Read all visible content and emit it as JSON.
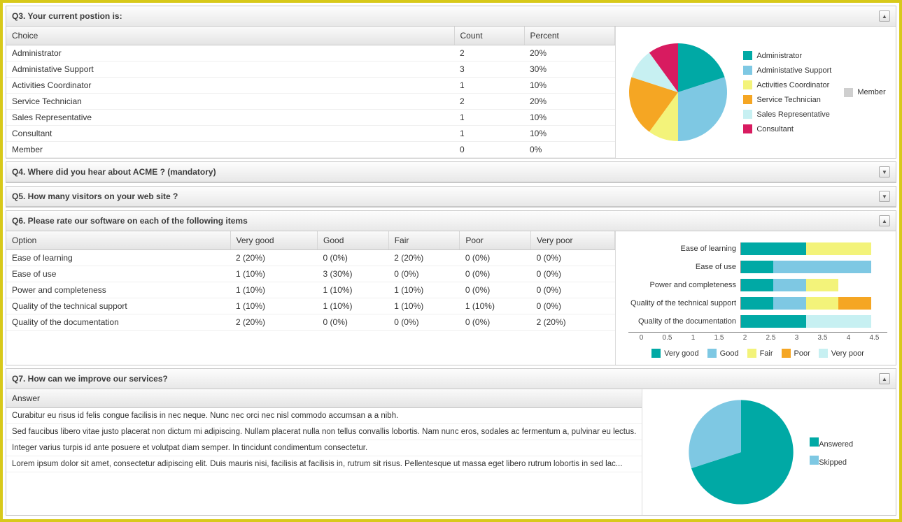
{
  "q3": {
    "title": "Q3. Your current postion is:",
    "expanded": true,
    "columns": [
      "Choice",
      "Count",
      "Percent"
    ],
    "rows": [
      {
        "label": "Administrator",
        "count": 2,
        "percent": "20%"
      },
      {
        "label": "Administative Support",
        "count": 3,
        "percent": "30%"
      },
      {
        "label": "Activities Coordinator",
        "count": 1,
        "percent": "10%"
      },
      {
        "label": "Service Technician",
        "count": 2,
        "percent": "20%"
      },
      {
        "label": "Sales Representative",
        "count": 1,
        "percent": "10%"
      },
      {
        "label": "Consultant",
        "count": 1,
        "percent": "10%"
      },
      {
        "label": "Member",
        "count": 0,
        "percent": "0%"
      }
    ],
    "pie": {
      "type": "pie",
      "radius": 70,
      "slices": [
        {
          "label": "Administrator",
          "value": 20,
          "color": "#00a9a5"
        },
        {
          "label": "Administative Support",
          "value": 30,
          "color": "#7ec8e3"
        },
        {
          "label": "Activities Coordinator",
          "value": 10,
          "color": "#f3f37a"
        },
        {
          "label": "Service Technician",
          "value": 20,
          "color": "#f5a623"
        },
        {
          "label": "Sales Representative",
          "value": 10,
          "color": "#c7f0f2"
        },
        {
          "label": "Consultant",
          "value": 10,
          "color": "#d81b60"
        },
        {
          "label": "Member",
          "value": 0,
          "color": "#cfcfcf"
        }
      ],
      "extra_legend_label": "Member",
      "extra_legend_color": "#cfcfcf"
    }
  },
  "q4": {
    "title": "Q4. Where did you hear about ACME ? (mandatory)",
    "expanded": false
  },
  "q5": {
    "title": "Q5. How many visitors on your web site ?",
    "expanded": false
  },
  "q6": {
    "title": "Q6. Please rate our software on each of the following items",
    "expanded": true,
    "columns": [
      "Option",
      "Very good",
      "Good",
      "Fair",
      "Poor",
      "Very poor"
    ],
    "rows": [
      {
        "label": "Ease of learning",
        "cells": [
          "2 (20%)",
          "0 (0%)",
          "2 (20%)",
          "0 (0%)",
          "0 (0%)"
        ]
      },
      {
        "label": "Ease of use",
        "cells": [
          "1 (10%)",
          "3 (30%)",
          "0 (0%)",
          "0 (0%)",
          "0 (0%)"
        ]
      },
      {
        "label": "Power and completeness",
        "cells": [
          "1 (10%)",
          "1 (10%)",
          "1 (10%)",
          "0 (0%)",
          "0 (0%)"
        ]
      },
      {
        "label": "Quality of the technical support",
        "cells": [
          "1 (10%)",
          "1 (10%)",
          "1 (10%)",
          "1 (10%)",
          "0 (0%)"
        ]
      },
      {
        "label": "Quality of the documentation",
        "cells": [
          "2 (20%)",
          "0 (0%)",
          "0 (0%)",
          "0 (0%)",
          "2 (20%)"
        ]
      }
    ],
    "bar": {
      "type": "stacked-bar",
      "categories": [
        "Ease of learning",
        "Ease of use",
        "Power and completeness",
        "Quality of the technical support",
        "Quality of the documentation"
      ],
      "series": [
        {
          "name": "Very good",
          "color": "#00a9a5",
          "values": [
            2,
            1,
            1,
            1,
            2
          ]
        },
        {
          "name": "Good",
          "color": "#7ec8e3",
          "values": [
            0,
            3,
            1,
            1,
            0
          ]
        },
        {
          "name": "Fair",
          "color": "#f3f37a",
          "values": [
            2,
            0,
            1,
            1,
            0
          ]
        },
        {
          "name": "Poor",
          "color": "#f5a623",
          "values": [
            0,
            0,
            0,
            1,
            0
          ]
        },
        {
          "name": "Very poor",
          "color": "#c7f0f2",
          "values": [
            0,
            0,
            0,
            0,
            2
          ]
        }
      ],
      "xlim": [
        0,
        4.5
      ],
      "xtick_step": 0.5,
      "ticks": [
        "0",
        "0.5",
        "1",
        "1.5",
        "2",
        "2.5",
        "3",
        "3.5",
        "4",
        "4.5"
      ],
      "label_fontsize": 11,
      "grid_color": "#dddddd",
      "background_color": "#ffffff"
    }
  },
  "q7": {
    "title": "Q7. How can we improve our services?",
    "expanded": true,
    "answer_header": "Answer",
    "answers": [
      "Curabitur eu risus id felis congue facilisis in nec neque. Nunc nec orci nec nisl commodo accumsan a a nibh.",
      "Sed faucibus libero vitae justo placerat non dictum mi adipiscing. Nullam placerat nulla non tellus convallis lobortis. Nam nunc eros, sodales ac fermentum a, pulvinar eu lectus.",
      "Integer varius turpis id ante posuere et volutpat diam semper. In tincidunt condimentum consectetur.",
      "Lorem ipsum dolor sit amet, consectetur adipiscing elit. Duis mauris nisi, facilisis at facilisis in, rutrum sit risus. Pellentesque ut massa eget libero rutrum lobortis in sed lac..."
    ],
    "pie": {
      "type": "pie",
      "radius": 70,
      "slices": [
        {
          "label": "Answered",
          "value": 70,
          "color": "#00a9a5"
        },
        {
          "label": "Skipped",
          "value": 30,
          "color": "#7ec8e3"
        }
      ]
    }
  }
}
